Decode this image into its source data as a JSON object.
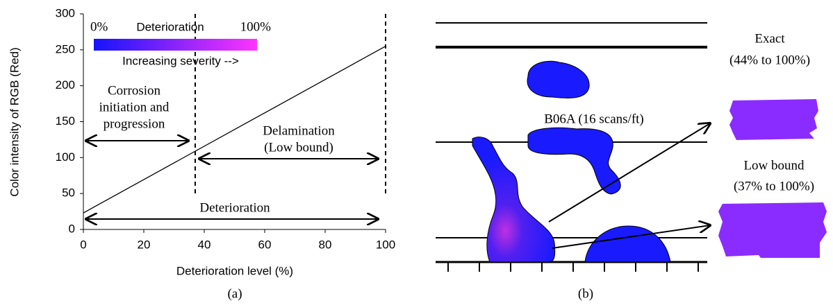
{
  "chart_data": {
    "type": "line",
    "x": [
      0,
      100
    ],
    "values": [
      23,
      255
    ],
    "color": "#000000",
    "x_label": "Deterioration level (%)",
    "y_label": "Color intensity of RGB (Red)",
    "xlim": [
      0,
      100
    ],
    "xticks": [
      0,
      20,
      40,
      60,
      80,
      100
    ],
    "ylim": [
      0,
      300
    ],
    "yticks": [
      0,
      50,
      100,
      150,
      200,
      250,
      300
    ],
    "vlines": [
      37,
      100
    ],
    "colorbar": {
      "min_label": "0%",
      "title": "Deterioration",
      "max_label": "100%",
      "caption": "Increasing severity -->",
      "colors": [
        "#1414ff",
        "#ff33ff"
      ]
    },
    "annotations": [
      {
        "lines": [
          "Corrosion",
          "initiation and",
          "progression"
        ]
      },
      {
        "lines": [
          "Delamination",
          "(Low bound)"
        ]
      },
      {
        "lines": [
          "Deterioration"
        ]
      }
    ],
    "caption": "(a)"
  },
  "panel_b": {
    "scan_label": "B06A (16 scans/ft)",
    "exact_title": "Exact",
    "exact_range": "(44% to 100%)",
    "low_title": "Low bound",
    "low_range": "(37% to 100%)",
    "caption": "(b)"
  }
}
